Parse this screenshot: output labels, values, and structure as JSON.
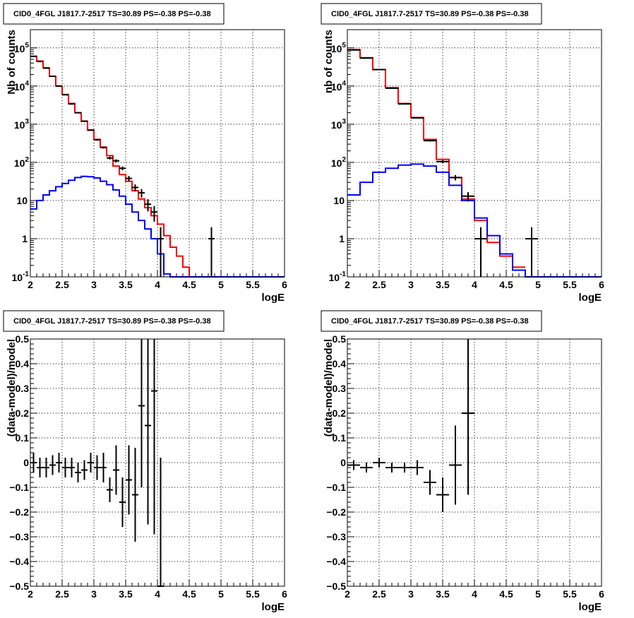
{
  "chart_data": [
    {
      "panel": "top-left",
      "type": "line",
      "title": "CID0_4FGL J1817.7-2517 TS=30.89 PS=-0.38 PS=-0.38",
      "xlabel": "logE",
      "ylabel": "Nb of counts",
      "xlim": [
        2,
        6
      ],
      "ylim": [
        0.1,
        300000
      ],
      "log_y": true,
      "grid": true,
      "x_ticks": [
        "2",
        "2.5",
        "3",
        "3.5",
        "4",
        "4.5",
        "5",
        "5.5",
        "6"
      ],
      "y_ticks": [
        "10^-1",
        "1",
        "10",
        "10^2",
        "10^3",
        "10^4",
        "10^5"
      ],
      "series": [
        {
          "style": "step",
          "color": "#ff0000",
          "bin_width": 0.1,
          "x": [
            2.05,
            2.15,
            2.25,
            2.35,
            2.45,
            2.55,
            2.65,
            2.75,
            2.85,
            2.95,
            3.05,
            3.15,
            3.25,
            3.35,
            3.45,
            3.55,
            3.65,
            3.75,
            3.85,
            3.95,
            4.05,
            4.15,
            4.25,
            4.35,
            4.45,
            4.55
          ],
          "values": [
            60000,
            45000,
            30000,
            18000,
            10000,
            6000,
            3500,
            2000,
            1200,
            700,
            400,
            250,
            150,
            80,
            48,
            32,
            18,
            11,
            6.5,
            4,
            2.4,
            1.2,
            0.6,
            0.35,
            0.18,
            0.1
          ]
        },
        {
          "style": "step",
          "color": "#0000ff",
          "bin_width": 0.1,
          "x": [
            2.05,
            2.15,
            2.25,
            2.35,
            2.45,
            2.55,
            2.65,
            2.75,
            2.85,
            2.95,
            3.05,
            3.15,
            3.25,
            3.35,
            3.45,
            3.55,
            3.65,
            3.75,
            3.85,
            3.95,
            4.05,
            4.15,
            4.25,
            4.35,
            4.45,
            4.55,
            4.65,
            4.75,
            4.85,
            4.95,
            5.05,
            5.15,
            5.25,
            5.35,
            5.45,
            5.55,
            5.65,
            5.75,
            5.85,
            5.95
          ],
          "values": [
            6,
            10,
            14,
            18,
            23,
            28,
            34,
            40,
            43,
            42,
            39,
            32,
            26,
            19,
            13,
            8,
            5,
            3,
            1.8,
            1,
            0.4,
            0.12,
            0.1,
            0.1,
            0.1,
            0.1,
            0.1,
            0.1,
            0.1,
            0.1,
            0.1,
            0.1,
            0.1,
            0.1,
            0.1,
            0.1,
            0.1,
            0.1,
            0.1,
            0.1
          ]
        },
        {
          "style": "points",
          "color": "#000000",
          "x": [
            2.05,
            2.15,
            2.25,
            2.35,
            2.45,
            2.55,
            2.65,
            2.75,
            2.85,
            2.95,
            3.05,
            3.15,
            3.25,
            3.35,
            3.45,
            3.55,
            3.65,
            3.75,
            3.85,
            3.95,
            4.05,
            4.85
          ],
          "values": [
            60000,
            44000,
            29500,
            18000,
            10000,
            5900,
            3400,
            2000,
            1200,
            700,
            390,
            245,
            130,
            110,
            70,
            38,
            22,
            16,
            8,
            5,
            1,
            1
          ],
          "err_low": [
            245,
            210,
            172,
            134,
            100,
            77,
            58,
            45,
            35,
            26,
            20,
            16,
            11,
            10,
            8,
            6,
            4.5,
            4,
            2.8,
            2.2,
            1,
            1
          ],
          "err_high": [
            245,
            210,
            172,
            134,
            100,
            77,
            58,
            45,
            35,
            26,
            20,
            16,
            11,
            10,
            8,
            6,
            4.5,
            4,
            2.8,
            2.2,
            1,
            1
          ]
        }
      ]
    },
    {
      "panel": "top-right",
      "type": "line",
      "title": "CID0_4FGL J1817.7-2517 TS=30.89 PS=-0.38 PS=-0.38",
      "xlabel": "logE",
      "ylabel": "nb of counts",
      "xlim": [
        2,
        6
      ],
      "ylim": [
        0.1,
        300000
      ],
      "log_y": true,
      "grid": true,
      "x_ticks": [
        "2",
        "2.5",
        "3",
        "3.5",
        "4",
        "4.5",
        "5",
        "5.5",
        "6"
      ],
      "y_ticks": [
        "10^-1",
        "1",
        "10",
        "10^2",
        "10^3",
        "10^4",
        "10^5"
      ],
      "series": [
        {
          "style": "step",
          "color": "#ff0000",
          "bin_width": 0.2,
          "x": [
            2.1,
            2.3,
            2.5,
            2.7,
            2.9,
            3.1,
            3.3,
            3.5,
            3.7,
            3.9,
            4.1,
            4.3,
            4.5,
            4.7
          ],
          "values": [
            90000,
            55000,
            27000,
            9000,
            3500,
            1500,
            400,
            120,
            40,
            11,
            3,
            0.8,
            0.35,
            0.18
          ]
        },
        {
          "style": "step",
          "color": "#0000ff",
          "bin_width": 0.2,
          "x": [
            2.1,
            2.3,
            2.5,
            2.7,
            2.9,
            3.1,
            3.3,
            3.5,
            3.7,
            3.9,
            4.1,
            4.3,
            4.5,
            4.7,
            4.9,
            5.1,
            5.3,
            5.5,
            5.7,
            5.9
          ],
          "values": [
            14,
            30,
            55,
            70,
            85,
            90,
            80,
            55,
            25,
            10,
            3.5,
            1.2,
            0.4,
            0.15,
            0.1,
            0.1,
            0.1,
            0.1,
            0.1,
            0.1
          ]
        },
        {
          "style": "points",
          "color": "#000000",
          "x": [
            2.1,
            2.3,
            2.5,
            2.7,
            2.9,
            3.1,
            3.3,
            3.5,
            3.7,
            3.9,
            4.1,
            4.9
          ],
          "values": [
            88000,
            54000,
            27000,
            8800,
            3400,
            1470,
            370,
            105,
            40,
            13,
            1,
            1
          ],
          "err_low": [
            297,
            232,
            164,
            94,
            58,
            38,
            19,
            10,
            6.3,
            3.6,
            1,
            1
          ],
          "err_high": [
            297,
            232,
            164,
            94,
            58,
            38,
            19,
            10,
            6.3,
            3.6,
            1,
            1
          ]
        }
      ]
    },
    {
      "panel": "bottom-left",
      "type": "scatter",
      "title": "CID0_4FGL J1817.7-2517 TS=30.89 PS=-0.38 PS=-0.38",
      "xlabel": "logE",
      "ylabel": "(data-model)/model",
      "xlim": [
        2,
        6
      ],
      "ylim": [
        -0.5,
        0.5
      ],
      "grid": true,
      "x_ticks": [
        "2",
        "2.5",
        "3",
        "3.5",
        "4",
        "4.5",
        "5",
        "5.5",
        "6"
      ],
      "y_ticks": [
        "-0.5",
        "-0.4",
        "-0.3",
        "-0.2",
        "-0.1",
        "0",
        "0.1",
        "0.2",
        "0.3",
        "0.4",
        "0.5"
      ],
      "series": [
        {
          "style": "points",
          "color": "#000000",
          "x_half_width": 0.05,
          "x": [
            2.05,
            2.15,
            2.25,
            2.35,
            2.45,
            2.55,
            2.65,
            2.75,
            2.85,
            2.95,
            3.05,
            3.15,
            3.25,
            3.35,
            3.45,
            3.55,
            3.65,
            3.75,
            3.85,
            3.95,
            4.05
          ],
          "values": [
            0,
            -0.02,
            -0.02,
            -0.01,
            0,
            -0.02,
            -0.02,
            -0.04,
            -0.03,
            0,
            -0.02,
            -0.02,
            -0.11,
            -0.03,
            -0.16,
            -0.07,
            -0.13,
            0.23,
            0.15,
            0.29,
            -0.5
          ],
          "err_low": [
            0.04,
            0.04,
            0.04,
            0.04,
            0.04,
            0.04,
            0.04,
            0.04,
            0.04,
            0.04,
            0.05,
            0.06,
            0.05,
            0.1,
            0.1,
            0.14,
            0.19,
            0.33,
            0.4,
            0.58,
            0.52
          ],
          "err_high": [
            0.04,
            0.04,
            0.04,
            0.04,
            0.04,
            0.04,
            0.04,
            0.04,
            0.04,
            0.04,
            0.05,
            0.06,
            0.05,
            0.1,
            0.1,
            0.14,
            0.19,
            0.33,
            0.4,
            0.58,
            0.52
          ]
        }
      ]
    },
    {
      "panel": "bottom-right",
      "type": "scatter",
      "title": "CID0_4FGL J1817.7-2517 TS=30.89 PS=-0.38 PS=-0.38",
      "xlabel": "logE",
      "ylabel": "(data-model)/model",
      "xlim": [
        2,
        6
      ],
      "ylim": [
        -0.5,
        0.5
      ],
      "grid": true,
      "x_ticks": [
        "2",
        "2.5",
        "3",
        "3.5",
        "4",
        "4.5",
        "5",
        "5.5",
        "6"
      ],
      "y_ticks": [
        "-0.5",
        "-0.4",
        "-0.3",
        "-0.2",
        "-0.1",
        "0",
        "0.1",
        "0.2",
        "0.3",
        "0.4",
        "0.5"
      ],
      "series": [
        {
          "style": "points",
          "color": "#000000",
          "x_half_width": 0.1,
          "x": [
            2.1,
            2.3,
            2.5,
            2.7,
            2.9,
            3.1,
            3.3,
            3.5,
            3.7,
            3.9
          ],
          "values": [
            -0.01,
            -0.02,
            0,
            -0.02,
            -0.02,
            -0.02,
            -0.08,
            -0.13,
            -0.01,
            0.2
          ],
          "err_low": [
            0.02,
            0.02,
            0.02,
            0.02,
            0.02,
            0.03,
            0.05,
            0.07,
            0.16,
            0.33
          ],
          "err_high": [
            0.02,
            0.02,
            0.02,
            0.02,
            0.02,
            0.03,
            0.05,
            0.07,
            0.16,
            0.33
          ]
        }
      ]
    }
  ]
}
